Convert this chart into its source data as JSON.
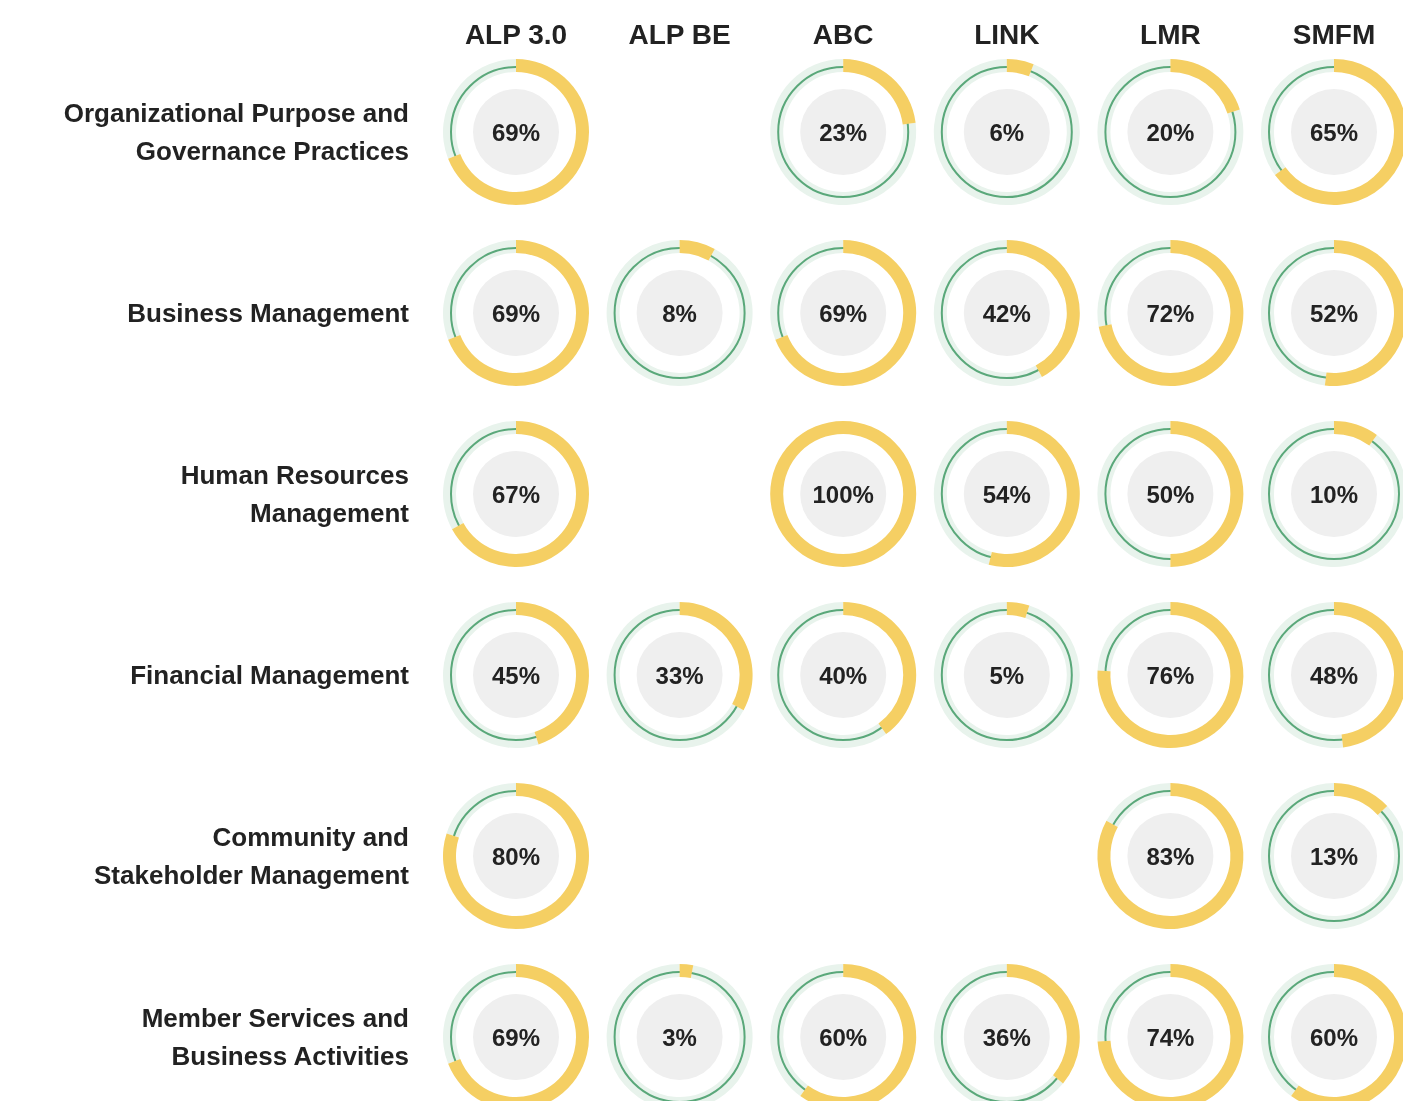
{
  "chart_data": [
    {
      "type": "other",
      "categories": [
        "ALP 3.0",
        "ALP BE",
        "ABC",
        "LINK",
        "LMR",
        "SMFM"
      ],
      "y_categories": [
        "Organizational Purpose and Governance Practices",
        "Business Management",
        "Human Resources Management",
        "Financial Management",
        "Community and Stakeholder Management",
        "Member Services and Business Activities"
      ],
      "cell_labels": [
        [
          "69%",
          null,
          "23%",
          "6%",
          "20%",
          "65%"
        ],
        [
          "69%",
          "8%",
          "69%",
          "42%",
          "72%",
          "52%"
        ],
        [
          "67%",
          null,
          "100%",
          "54%",
          "50%",
          "10%"
        ],
        [
          "45%",
          "33%",
          "40%",
          "5%",
          "76%",
          "48%"
        ],
        [
          "80%",
          null,
          null,
          null,
          "83%",
          "13%"
        ],
        [
          "69%",
          "3%",
          "60%",
          "36%",
          "74%",
          "60%"
        ]
      ]
    },
    {
      "type": "donut",
      "categories": [
        null,
        null
      ],
      "values": [
        69,
        31
      ],
      "colors": [
        "#f5cf63",
        "#e8f3ec"
      ]
    },
    {
      "type": "donut",
      "categories": [
        null,
        null
      ],
      "values": [
        23,
        77
      ],
      "colors": [
        "#f5cf63",
        "#e8f3ec"
      ]
    },
    {
      "type": "donut",
      "categories": [
        null,
        null
      ],
      "values": [
        6,
        94
      ],
      "colors": [
        "#f5cf63",
        "#e8f3ec"
      ]
    },
    {
      "type": "donut",
      "categories": [
        null,
        null
      ],
      "values": [
        20,
        80
      ],
      "colors": [
        "#f5cf63",
        "#e8f3ec"
      ]
    },
    {
      "type": "donut",
      "categories": [
        null,
        null
      ],
      "values": [
        65,
        35
      ],
      "colors": [
        "#f5cf63",
        "#e8f3ec"
      ]
    },
    {
      "type": "donut",
      "categories": [
        null,
        null
      ],
      "values": [
        69,
        31
      ],
      "colors": [
        "#f5cf63",
        "#e8f3ec"
      ]
    },
    {
      "type": "donut",
      "categories": [
        null,
        null
      ],
      "values": [
        8,
        92
      ],
      "colors": [
        "#f5cf63",
        "#e8f3ec"
      ]
    },
    {
      "type": "donut",
      "categories": [
        null,
        null
      ],
      "values": [
        69,
        31
      ],
      "colors": [
        "#f5cf63",
        "#e8f3ec"
      ]
    },
    {
      "type": "donut",
      "categories": [
        null,
        null
      ],
      "values": [
        42,
        58
      ],
      "colors": [
        "#f5cf63",
        "#e8f3ec"
      ]
    },
    {
      "type": "donut",
      "categories": [
        null,
        null
      ],
      "values": [
        72,
        28
      ],
      "colors": [
        "#f5cf63",
        "#e8f3ec"
      ]
    },
    {
      "type": "donut",
      "categories": [
        null,
        null
      ],
      "values": [
        52,
        48
      ],
      "colors": [
        "#f5cf63",
        "#e8f3ec"
      ]
    },
    {
      "type": "donut",
      "categories": [
        null,
        null
      ],
      "values": [
        67,
        33
      ],
      "colors": [
        "#f5cf63",
        "#e8f3ec"
      ]
    },
    {
      "type": "donut",
      "categories": [
        null,
        null
      ],
      "values": [
        100,
        0
      ],
      "colors": [
        "#f5cf63",
        "#e8f3ec"
      ]
    },
    {
      "type": "donut",
      "categories": [
        null,
        null
      ],
      "values": [
        54,
        46
      ],
      "colors": [
        "#f5cf63",
        "#e8f3ec"
      ]
    },
    {
      "type": "donut",
      "categories": [
        null,
        null
      ],
      "values": [
        50,
        50
      ],
      "colors": [
        "#f5cf63",
        "#e8f3ec"
      ]
    },
    {
      "type": "donut",
      "categories": [
        null,
        null
      ],
      "values": [
        10,
        90
      ],
      "colors": [
        "#f5cf63",
        "#e8f3ec"
      ]
    },
    {
      "type": "donut",
      "categories": [
        null,
        null
      ],
      "values": [
        45,
        55
      ],
      "colors": [
        "#f5cf63",
        "#e8f3ec"
      ]
    },
    {
      "type": "donut",
      "categories": [
        null,
        null
      ],
      "values": [
        33,
        67
      ],
      "colors": [
        "#f5cf63",
        "#e8f3ec"
      ]
    },
    {
      "type": "donut",
      "categories": [
        null,
        null
      ],
      "values": [
        40,
        60
      ],
      "colors": [
        "#f5cf63",
        "#e8f3ec"
      ]
    },
    {
      "type": "donut",
      "categories": [
        null,
        null
      ],
      "values": [
        5,
        95
      ],
      "colors": [
        "#f5cf63",
        "#e8f3ec"
      ]
    },
    {
      "type": "donut",
      "categories": [
        null,
        null
      ],
      "values": [
        76,
        24
      ],
      "colors": [
        "#f5cf63",
        "#e8f3ec"
      ]
    },
    {
      "type": "donut",
      "categories": [
        null,
        null
      ],
      "values": [
        48,
        52
      ],
      "colors": [
        "#f5cf63",
        "#e8f3ec"
      ]
    },
    {
      "type": "donut",
      "categories": [
        null,
        null
      ],
      "values": [
        80,
        20
      ],
      "colors": [
        "#f5cf63",
        "#e8f3ec"
      ]
    },
    {
      "type": "donut",
      "categories": [
        null,
        null
      ],
      "values": [
        83,
        17
      ],
      "colors": [
        "#f5cf63",
        "#e8f3ec"
      ]
    },
    {
      "type": "donut",
      "categories": [
        null,
        null
      ],
      "values": [
        13,
        87
      ],
      "colors": [
        "#f5cf63",
        "#e8f3ec"
      ]
    },
    {
      "type": "donut",
      "categories": [
        null,
        null
      ],
      "values": [
        69,
        31
      ],
      "colors": [
        "#f5cf63",
        "#e8f3ec"
      ]
    },
    {
      "type": "donut",
      "categories": [
        null,
        null
      ],
      "values": [
        3,
        97
      ],
      "colors": [
        "#f5cf63",
        "#e8f3ec"
      ]
    },
    {
      "type": "donut",
      "categories": [
        null,
        null
      ],
      "values": [
        60,
        40
      ],
      "colors": [
        "#f5cf63",
        "#e8f3ec"
      ]
    },
    {
      "type": "donut",
      "categories": [
        null,
        null
      ],
      "values": [
        36,
        64
      ],
      "colors": [
        "#f5cf63",
        "#e8f3ec"
      ]
    },
    {
      "type": "donut",
      "categories": [
        null,
        null
      ],
      "values": [
        74,
        26
      ],
      "colors": [
        "#f5cf63",
        "#e8f3ec"
      ]
    },
    {
      "type": "donut",
      "categories": [
        null,
        null
      ],
      "values": [
        60,
        40
      ],
      "colors": [
        "#f5cf63",
        "#e8f3ec"
      ]
    }
  ]
}
